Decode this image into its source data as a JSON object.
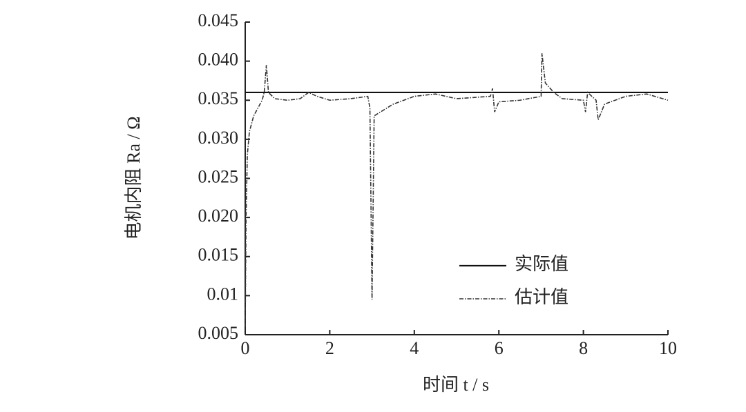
{
  "chart_data": {
    "type": "line",
    "xlabel": "时间 t / s",
    "ylabel": "电机内阻 Ra / Ω",
    "xlim": [
      0,
      10
    ],
    "xticks": [
      0,
      2,
      4,
      6,
      8,
      10
    ],
    "ylim": [
      0.005,
      0.045
    ],
    "yticks": [
      0.005,
      0.01,
      0.015,
      {
        "value": 0.02,
        "label": "0.020"
      },
      0.025,
      {
        "value": 0.03,
        "label": "0.030"
      },
      0.035,
      {
        "value": 0.04,
        "label": "0.040"
      },
      0.045
    ],
    "legend": "lower right",
    "series": [
      {
        "name": "实际值",
        "color": "#111111",
        "style": "solid",
        "x": [
          0,
          10
        ],
        "values": [
          0.036,
          0.036
        ]
      },
      {
        "name": "估计值",
        "color": "#333333",
        "style": "dashdot",
        "x": [
          0,
          0.02,
          0.05,
          0.1,
          0.2,
          0.3,
          0.4,
          0.45,
          0.5,
          0.55,
          0.7,
          1.0,
          1.3,
          1.5,
          1.7,
          2.0,
          2.5,
          2.9,
          2.95,
          3.0,
          3.05,
          3.2,
          3.5,
          4.0,
          4.5,
          5.0,
          5.8,
          5.85,
          5.9,
          6.0,
          6.5,
          7.0,
          7.02,
          7.1,
          7.3,
          7.5,
          8.0,
          8.05,
          8.1,
          8.3,
          8.35,
          8.5,
          9.0,
          9.5,
          10
        ],
        "values": [
          0.006,
          0.02,
          0.028,
          0.031,
          0.033,
          0.034,
          0.035,
          0.036,
          0.0395,
          0.036,
          0.0352,
          0.035,
          0.0352,
          0.036,
          0.0355,
          0.035,
          0.0352,
          0.0355,
          0.034,
          0.0095,
          0.033,
          0.0335,
          0.0345,
          0.0355,
          0.0358,
          0.0352,
          0.0355,
          0.0365,
          0.0335,
          0.0348,
          0.035,
          0.0355,
          0.041,
          0.0372,
          0.036,
          0.0352,
          0.035,
          0.0335,
          0.036,
          0.035,
          0.0325,
          0.0345,
          0.0355,
          0.0358,
          0.035
        ]
      }
    ]
  }
}
